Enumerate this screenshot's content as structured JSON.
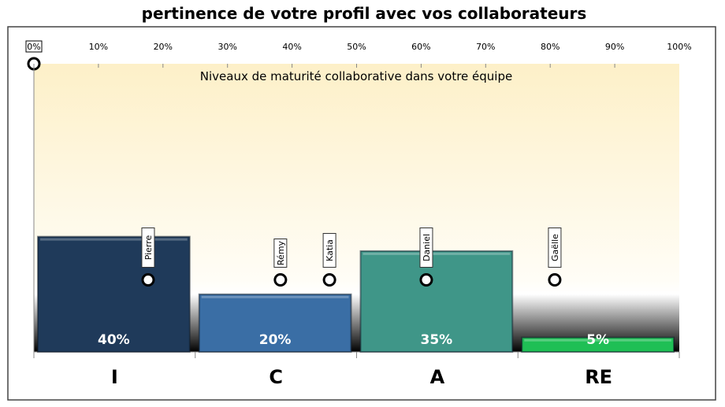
{
  "chart_data": {
    "type": "bar",
    "title": "pertinence de votre profil avec vos collaborateurs",
    "subtitle": "Niveaux de maturité collaborative dans votre équipe",
    "categories": [
      "I",
      "C",
      "A",
      "RE"
    ],
    "values": [
      40,
      20,
      35,
      5
    ],
    "value_labels": [
      "40%",
      "20%",
      "35%",
      "5%"
    ],
    "colors": [
      "#1f3a5a",
      "#3a6ea5",
      "#3f9688",
      "#1fbf55"
    ],
    "ylim": [
      0,
      100
    ],
    "x_ticks": [
      "0%",
      "10%",
      "20%",
      "30%",
      "40%",
      "50%",
      "60%",
      "70%",
      "80%",
      "90%",
      "100%"
    ],
    "markers": [
      {
        "name": "Pierre",
        "x": 17.7
      },
      {
        "name": "Rémy",
        "x": 38.2
      },
      {
        "name": "Katia",
        "x": 45.8
      },
      {
        "name": "Daniel",
        "x": 60.8
      },
      {
        "name": "Gaëlle",
        "x": 80.7
      }
    ],
    "marker_level": 25,
    "grid": false
  }
}
